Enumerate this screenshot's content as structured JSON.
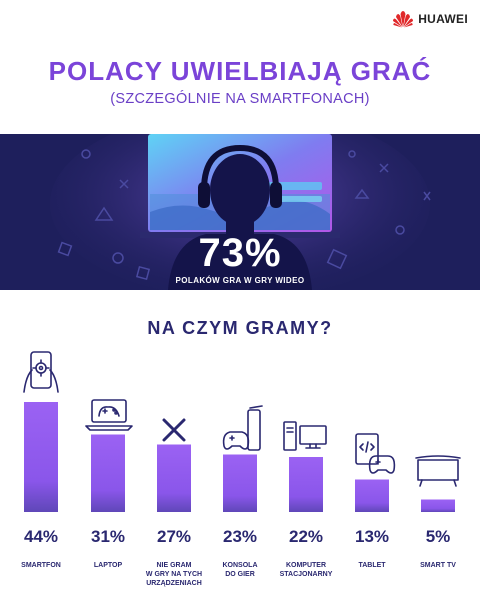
{
  "brand": {
    "name": "HUAWEI",
    "logo_icon": "huawei-petal-icon",
    "logo_color": "#e0282a"
  },
  "header": {
    "title": "POLACY UWIELBIAJĄ GRAĆ",
    "subtitle": "(SZCZEGÓLNIE NA SMARTFONACH)"
  },
  "banner": {
    "stat": "73%",
    "caption": "POLAKÓW GRA W GRY WIDEO",
    "illustration_icon": "gamer-with-headphones-icon",
    "background_color": "#1e1f5c"
  },
  "colors": {
    "accent": "#7b44d9",
    "bar_top": "#9b62f3",
    "bar_bottom": "#6f46c8",
    "text_dark": "#2a2870"
  },
  "chart_data": {
    "type": "bar",
    "title": "NA CZYM GRAMY?",
    "categories": [
      "SMARTFON",
      "LAPTOP",
      "NIE GRAM\nW GRY NA TYCH\nURZĄDZENIACH",
      "KONSOLA\nDO GIER",
      "KOMPUTER\nSTACJONARNY",
      "TABLET",
      "SMART TV"
    ],
    "values": [
      44,
      31,
      27,
      23,
      22,
      13,
      5
    ],
    "value_labels": [
      "44%",
      "31%",
      "27%",
      "23%",
      "22%",
      "13%",
      "5%"
    ],
    "icons": [
      "smartphone-icon",
      "laptop-icon",
      "x-mark-icon",
      "game-console-icon",
      "desktop-computer-icon",
      "tablet-icon",
      "smart-tv-icon"
    ],
    "ylim": [
      0,
      44
    ],
    "grid": false
  }
}
